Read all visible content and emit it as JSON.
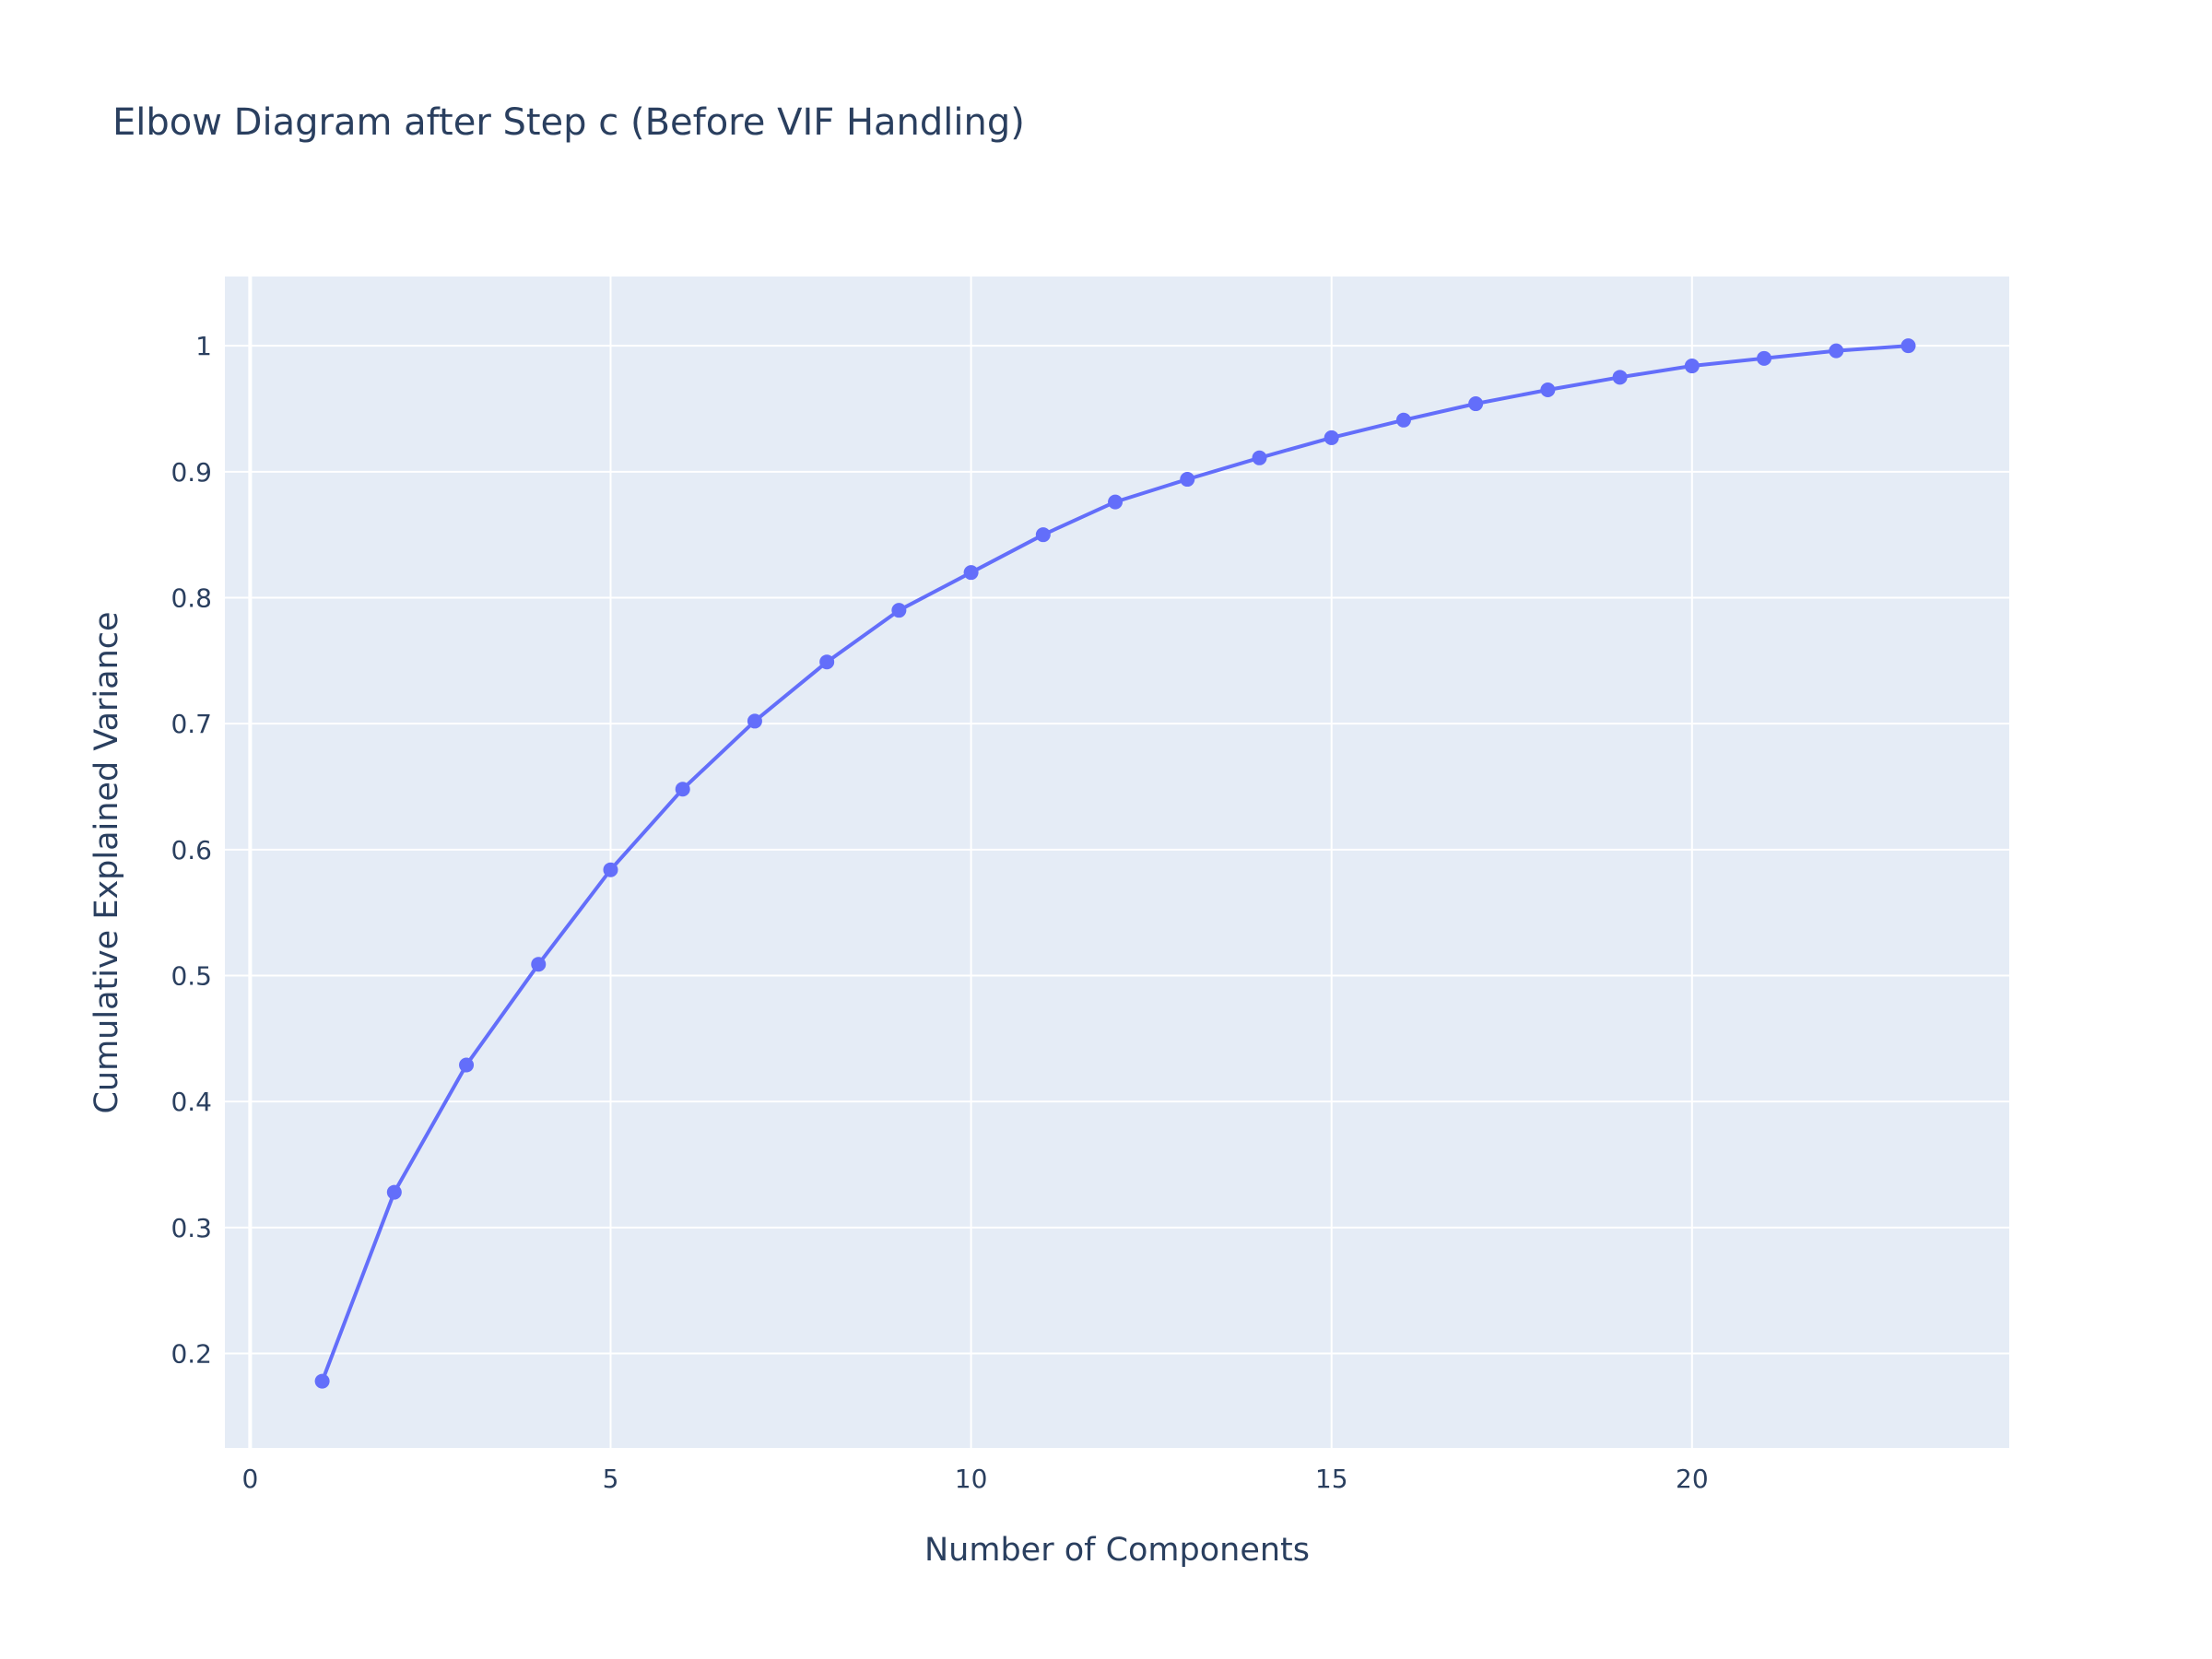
{
  "chart_data": {
    "type": "line",
    "title": "Elbow Diagram after Step c (Before VIF Handling)",
    "xlabel": "Number of Components",
    "ylabel": "Cumulative Explained Variance",
    "xlim": [
      -0.35,
      24.4
    ],
    "ylim": [
      0.125,
      1.055
    ],
    "x_ticks": [
      0,
      5,
      10,
      15,
      20
    ],
    "x_tick_labels": [
      "0",
      "5",
      "10",
      "15",
      "20"
    ],
    "y_ticks": [
      0.2,
      0.3,
      0.4,
      0.5,
      0.6,
      0.7,
      0.8,
      0.9,
      1
    ],
    "y_tick_labels": [
      "0.2",
      "0.3",
      "0.4",
      "0.5",
      "0.6",
      "0.7",
      "0.8",
      "0.9",
      "1"
    ],
    "grid": true,
    "legend": "none",
    "colors": {
      "line": "#636efa",
      "plot_background": "#e5ecf6",
      "grid": "#ffffff",
      "text": "#2a3f5f"
    },
    "series": [
      {
        "mode": "lines+markers",
        "x": [
          1,
          2,
          3,
          4,
          5,
          6,
          7,
          8,
          9,
          10,
          11,
          12,
          13,
          14,
          15,
          16,
          17,
          18,
          19,
          20,
          21,
          22,
          23
        ],
        "y": [
          0.178,
          0.328,
          0.429,
          0.509,
          0.584,
          0.648,
          0.702,
          0.749,
          0.79,
          0.82,
          0.85,
          0.876,
          0.894,
          0.911,
          0.927,
          0.941,
          0.954,
          0.965,
          0.975,
          0.984,
          0.99,
          0.996,
          1.0
        ]
      }
    ]
  }
}
